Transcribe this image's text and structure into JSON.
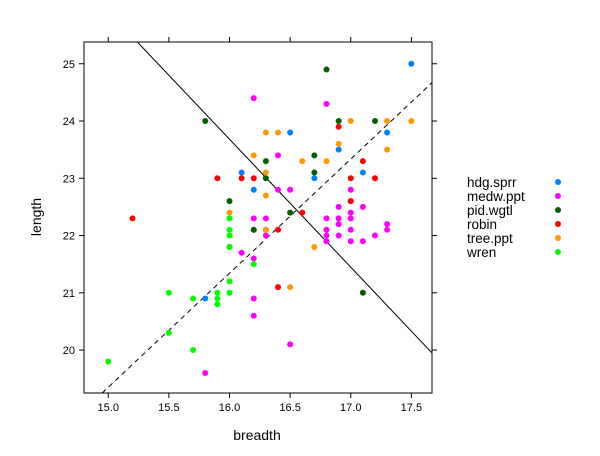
{
  "chart_data": {
    "type": "scatter",
    "xlabel": "breadth",
    "ylabel": "length",
    "xlim": [
      14.8,
      17.67
    ],
    "ylim": [
      19.25,
      25.38
    ],
    "x_ticks": [
      "15.0",
      "15.5",
      "16.0",
      "16.5",
      "17.0",
      "17.5"
    ],
    "y_ticks": [
      "20",
      "21",
      "22",
      "23",
      "24",
      "25"
    ],
    "grid": false,
    "legend_position": "right",
    "series": [
      {
        "name": "hdg.sprr",
        "color": "#0080ff",
        "points": [
          [
            15.8,
            20.9
          ],
          [
            16.1,
            23.1
          ],
          [
            16.2,
            22.8
          ],
          [
            16.5,
            23.8
          ],
          [
            16.7,
            23.0
          ],
          [
            16.9,
            23.5
          ],
          [
            17.1,
            23.1
          ],
          [
            17.3,
            23.8
          ],
          [
            17.5,
            25.0
          ]
        ]
      },
      {
        "name": "medw.ppt",
        "color": "#ff00ff",
        "points": [
          [
            16.2,
            24.4
          ],
          [
            16.4,
            23.4
          ],
          [
            16.4,
            22.8
          ],
          [
            16.5,
            22.8
          ],
          [
            16.3,
            22.3
          ],
          [
            16.2,
            22.3
          ],
          [
            16.2,
            22.1
          ],
          [
            16.3,
            22.0
          ],
          [
            16.1,
            21.7
          ],
          [
            16.2,
            21.6
          ],
          [
            16.2,
            20.9
          ],
          [
            16.2,
            20.6
          ],
          [
            16.5,
            20.1
          ],
          [
            15.8,
            19.6
          ],
          [
            16.8,
            24.3
          ],
          [
            16.8,
            22.3
          ],
          [
            16.8,
            22.1
          ],
          [
            16.8,
            22.0
          ],
          [
            16.8,
            21.9
          ],
          [
            16.9,
            22.5
          ],
          [
            16.9,
            22.3
          ],
          [
            16.9,
            22.2
          ],
          [
            16.9,
            22.0
          ],
          [
            17.0,
            22.8
          ],
          [
            17.0,
            22.6
          ],
          [
            17.0,
            22.4
          ],
          [
            17.0,
            22.3
          ],
          [
            17.0,
            22.1
          ],
          [
            17.0,
            21.9
          ],
          [
            17.1,
            21.9
          ],
          [
            17.1,
            22.5
          ],
          [
            17.2,
            22.0
          ],
          [
            17.3,
            22.2
          ],
          [
            17.3,
            22.1
          ]
        ]
      },
      {
        "name": "pid.wgtl",
        "color": "#006000",
        "points": [
          [
            15.8,
            24.0
          ],
          [
            16.0,
            22.6
          ],
          [
            16.2,
            22.1
          ],
          [
            16.3,
            23.3
          ],
          [
            16.3,
            23.0
          ],
          [
            16.5,
            22.4
          ],
          [
            16.7,
            23.4
          ],
          [
            16.7,
            23.1
          ],
          [
            16.8,
            24.9
          ],
          [
            16.9,
            24.0
          ],
          [
            17.1,
            21.0
          ],
          [
            17.2,
            24.0
          ]
        ]
      },
      {
        "name": "robin",
        "color": "#ff0000",
        "points": [
          [
            15.2,
            22.3
          ],
          [
            15.9,
            23.0
          ],
          [
            16.0,
            21.8
          ],
          [
            16.1,
            23.0
          ],
          [
            16.2,
            23.0
          ],
          [
            16.3,
            22.1
          ],
          [
            16.4,
            22.1
          ],
          [
            16.4,
            21.1
          ],
          [
            16.6,
            22.4
          ],
          [
            16.9,
            23.9
          ],
          [
            17.0,
            23.0
          ],
          [
            17.0,
            22.6
          ],
          [
            17.1,
            23.3
          ],
          [
            17.2,
            23.0
          ]
        ]
      },
      {
        "name": "tree.ppt",
        "color": "#ff9900",
        "points": [
          [
            16.0,
            22.4
          ],
          [
            16.2,
            23.4
          ],
          [
            16.3,
            23.8
          ],
          [
            16.3,
            23.1
          ],
          [
            16.3,
            22.7
          ],
          [
            16.3,
            22.1
          ],
          [
            16.4,
            23.8
          ],
          [
            16.5,
            21.1
          ],
          [
            16.6,
            23.3
          ],
          [
            16.7,
            21.8
          ],
          [
            16.8,
            23.3
          ],
          [
            16.9,
            23.6
          ],
          [
            17.0,
            24.0
          ],
          [
            17.3,
            24.0
          ],
          [
            17.3,
            23.5
          ],
          [
            17.5,
            24.0
          ]
        ]
      },
      {
        "name": "wren",
        "color": "#00ff00",
        "points": [
          [
            15.0,
            19.8
          ],
          [
            15.5,
            21.0
          ],
          [
            15.5,
            20.3
          ],
          [
            15.7,
            20.9
          ],
          [
            15.7,
            20.0
          ],
          [
            15.9,
            21.0
          ],
          [
            15.9,
            20.9
          ],
          [
            15.9,
            20.8
          ],
          [
            16.0,
            22.3
          ],
          [
            16.0,
            22.1
          ],
          [
            16.0,
            22.0
          ],
          [
            16.0,
            21.8
          ],
          [
            16.0,
            21.2
          ],
          [
            16.0,
            21.0
          ],
          [
            16.2,
            21.5
          ]
        ]
      }
    ],
    "lines": [
      {
        "style": "solid",
        "color": "#000000",
        "p1": [
          15.24,
          25.38
        ],
        "p2": [
          17.67,
          19.95
        ]
      },
      {
        "style": "dashed",
        "color": "#000000",
        "p1": [
          14.95,
          19.25
        ],
        "p2": [
          17.67,
          24.67
        ]
      }
    ]
  }
}
